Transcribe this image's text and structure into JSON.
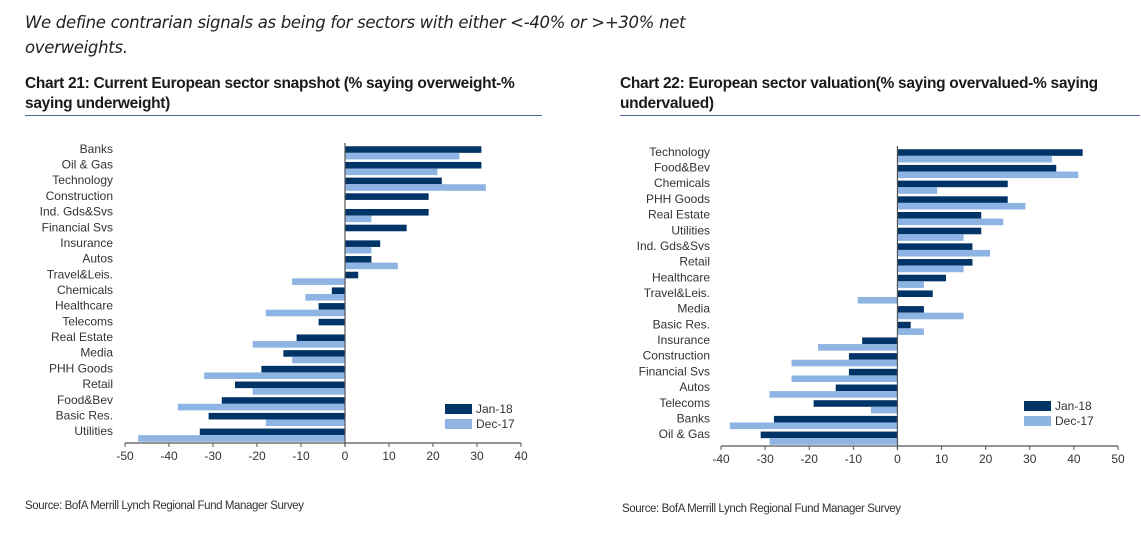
{
  "intro_text": "We define contrarian signals as being for sectors with either <-40% or >+30% net overweights.",
  "colors": {
    "jan18": "#003366",
    "dec17": "#8EB4E3",
    "axis": "#555555"
  },
  "chart_data": [
    {
      "id": "chart21",
      "type": "bar",
      "orientation": "horizontal",
      "title": "Chart 21: Current European sector snapshot (% saying overweight-% saying underweight)",
      "source": "Source: BofA Merrill Lynch Regional Fund Manager Survey",
      "xlabel": "",
      "ylabel": "",
      "xlim": [
        -50,
        40
      ],
      "xticks": [
        -50,
        -40,
        -30,
        -20,
        -10,
        0,
        10,
        20,
        30,
        40
      ],
      "grid": false,
      "legend_position": "bottom-right",
      "categories": [
        "Banks",
        "Oil & Gas",
        "Technology",
        "Construction",
        "Ind. Gds&Svs",
        "Financial Svs",
        "Insurance",
        "Autos",
        "Travel&Leis.",
        "Chemicals",
        "Healthcare",
        "Telecoms",
        "Real Estate",
        "Media",
        "PHH Goods",
        "Retail",
        "Food&Bev",
        "Basic Res.",
        "Utilities"
      ],
      "series": [
        {
          "name": "Jan-18",
          "values": [
            31,
            31,
            22,
            19,
            19,
            14,
            8,
            6,
            3,
            -3,
            -6,
            -6,
            -11,
            -14,
            -19,
            -25,
            -28,
            -31,
            -33
          ]
        },
        {
          "name": "Dec-17",
          "values": [
            26,
            21,
            32,
            0,
            6,
            0,
            6,
            12,
            -12,
            -9,
            -18,
            0,
            -21,
            -12,
            -32,
            -21,
            -38,
            -18,
            -47
          ]
        }
      ]
    },
    {
      "id": "chart22",
      "type": "bar",
      "orientation": "horizontal",
      "title": "Chart 22: European sector valuation(% saying overvalued-% saying undervalued)",
      "source": "Source: BofA Merrill Lynch Regional Fund Manager Survey",
      "xlabel": "",
      "ylabel": "",
      "xlim": [
        -40,
        50
      ],
      "xticks": [
        -40,
        -30,
        -20,
        -10,
        0,
        10,
        20,
        30,
        40,
        50
      ],
      "grid": false,
      "legend_position": "bottom-right",
      "categories": [
        "Technology",
        "Food&Bev",
        "Chemicals",
        "PHH Goods",
        "Real Estate",
        "Utilities",
        "Ind. Gds&Svs",
        "Retail",
        "Healthcare",
        "Travel&Leis.",
        "Media",
        "Basic Res.",
        "Insurance",
        "Construction",
        "Financial Svs",
        "Autos",
        "Telecoms",
        "Banks",
        "Oil & Gas"
      ],
      "series": [
        {
          "name": "Jan-18",
          "values": [
            42,
            36,
            25,
            25,
            19,
            19,
            17,
            17,
            11,
            8,
            6,
            3,
            -8,
            -11,
            -11,
            -14,
            -19,
            -28,
            -31
          ]
        },
        {
          "name": "Dec-17",
          "values": [
            35,
            41,
            9,
            29,
            24,
            15,
            21,
            15,
            6,
            -9,
            15,
            6,
            -18,
            -24,
            -24,
            -29,
            -6,
            -38,
            -29
          ]
        }
      ]
    }
  ]
}
